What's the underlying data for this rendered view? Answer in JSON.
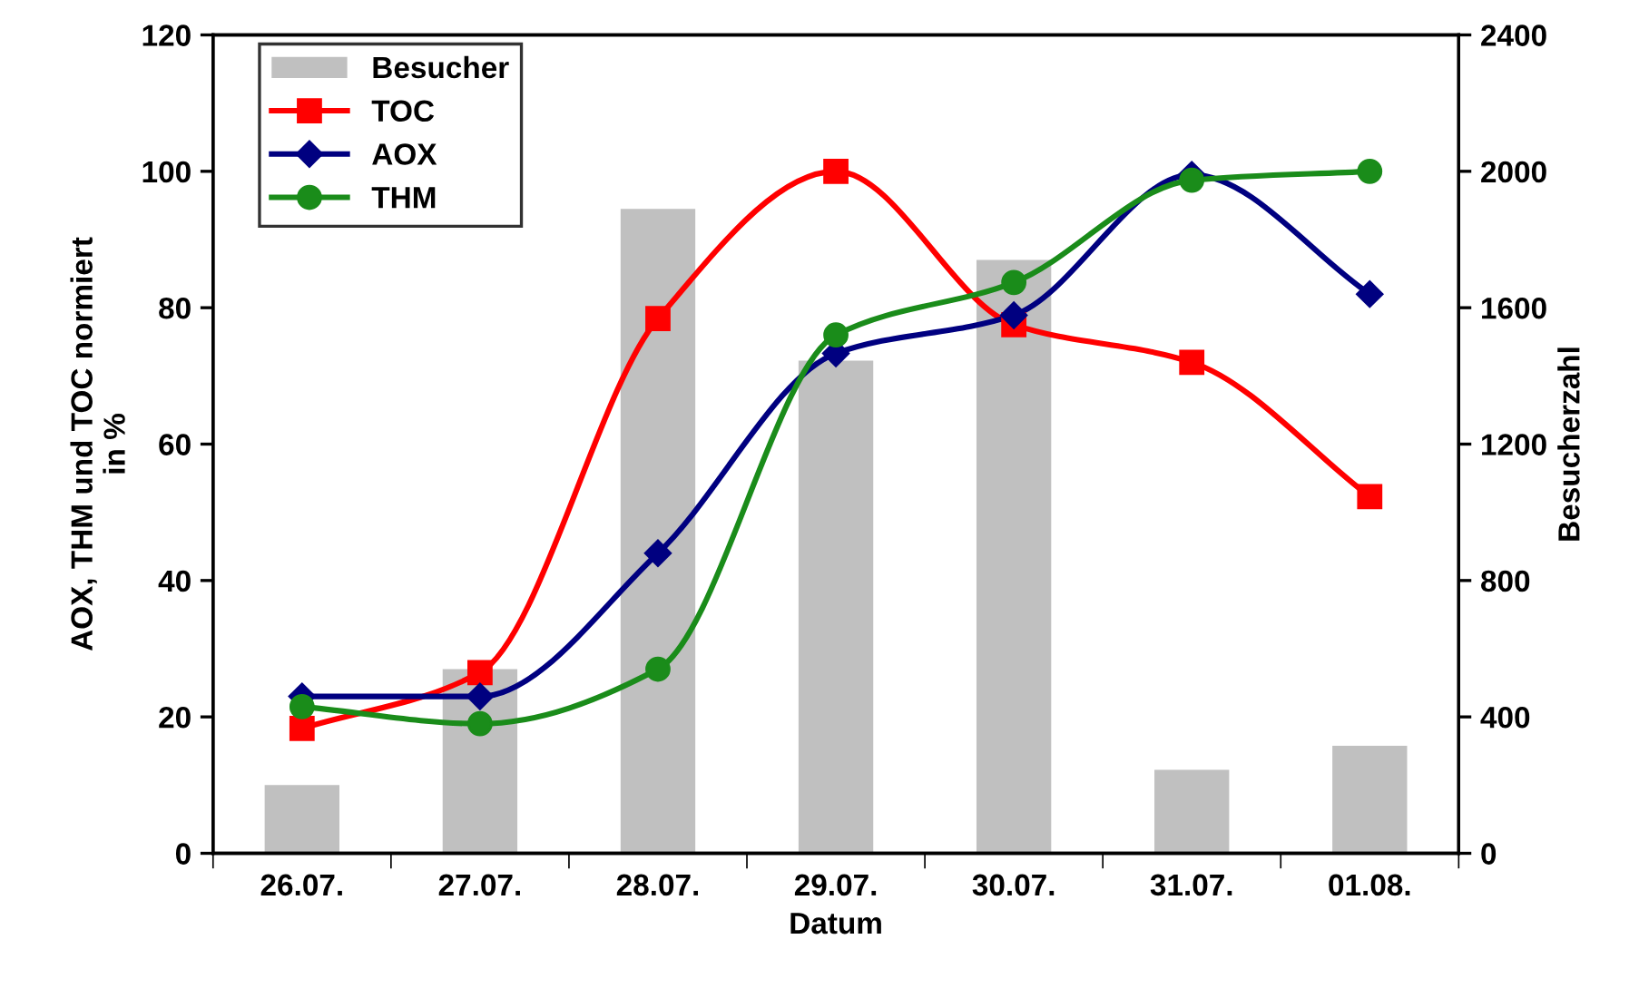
{
  "chart_data": {
    "type": "line",
    "xlabel": "Datum",
    "ylabel": "AOX, THM und TOC normiert\nin %",
    "y2label": "Besucherzahl",
    "categories": [
      "26.07.",
      "27.07.",
      "28.07.",
      "29.07.",
      "30.07.",
      "31.07.",
      "01.08."
    ],
    "ylim": [
      0,
      120
    ],
    "yticks": [
      0,
      20,
      40,
      60,
      80,
      100,
      120
    ],
    "y2lim": [
      0,
      2400
    ],
    "y2ticks": [
      0,
      400,
      800,
      1200,
      1600,
      2000,
      2400
    ],
    "grid": false,
    "legend": "top left",
    "series": [
      {
        "name": "Besucher",
        "type": "bar",
        "axis": "y2",
        "color": "#c0c0c0",
        "values": [
          200,
          540,
          1890,
          1445,
          1740,
          245,
          315
        ]
      },
      {
        "name": "TOC",
        "color": "#ff0000",
        "marker": "square",
        "values": [
          18.3,
          26.5,
          78.4,
          100,
          77.5,
          72,
          52.3
        ]
      },
      {
        "name": "AOX",
        "color": "#000080",
        "marker": "diamond",
        "values": [
          23,
          23,
          44,
          73.3,
          78.9,
          99.5,
          82
        ]
      },
      {
        "name": "THM",
        "color": "#1a8c1a",
        "marker": "circle",
        "values": [
          21.5,
          19,
          27,
          76,
          83.7,
          98.7,
          100
        ]
      }
    ]
  }
}
